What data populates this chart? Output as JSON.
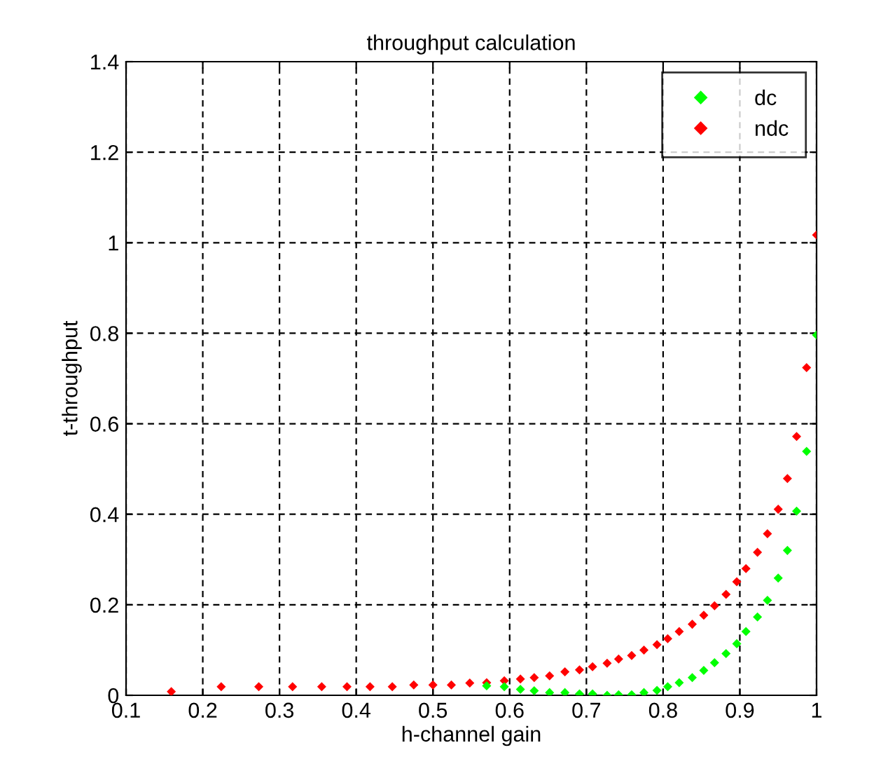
{
  "chart_data": {
    "type": "scatter",
    "title": "throughput calculation",
    "xlabel": "h-channel gain",
    "ylabel": "t-throughput",
    "series": [
      {
        "name": "dc",
        "color": "#00ff00",
        "x": [
          0.57,
          0.593,
          0.614,
          0.632,
          0.652,
          0.672,
          0.691,
          0.708,
          0.727,
          0.742,
          0.759,
          0.775,
          0.792,
          0.806,
          0.821,
          0.838,
          0.853,
          0.867,
          0.882,
          0.896,
          0.908,
          0.923,
          0.936,
          0.95,
          0.962,
          0.974,
          0.987,
          1.0
        ],
        "values": [
          0.021,
          0.019,
          0.013,
          0.01,
          0.006,
          0.006,
          0.003,
          0.003,
          0,
          0.001,
          0.001,
          0.006,
          0.011,
          0.019,
          0.028,
          0.039,
          0.055,
          0.072,
          0.092,
          0.114,
          0.141,
          0.173,
          0.21,
          0.259,
          0.32,
          0.407,
          0.539,
          0.796
        ]
      },
      {
        "name": "ndc",
        "color": "#ff0000",
        "x": [
          0.159,
          0.224,
          0.273,
          0.317,
          0.355,
          0.388,
          0.418,
          0.447,
          0.475,
          0.5,
          0.524,
          0.548,
          0.57,
          0.593,
          0.614,
          0.632,
          0.652,
          0.672,
          0.691,
          0.708,
          0.727,
          0.742,
          0.759,
          0.775,
          0.792,
          0.806,
          0.821,
          0.838,
          0.853,
          0.867,
          0.882,
          0.896,
          0.908,
          0.923,
          0.936,
          0.95,
          0.962,
          0.974,
          0.987,
          1.0
        ],
        "values": [
          0.008,
          0.019,
          0.019,
          0.019,
          0.019,
          0.019,
          0.019,
          0.019,
          0.023,
          0.023,
          0.023,
          0.027,
          0.028,
          0.032,
          0.036,
          0.039,
          0.043,
          0.052,
          0.056,
          0.063,
          0.071,
          0.08,
          0.088,
          0.1,
          0.112,
          0.125,
          0.141,
          0.157,
          0.177,
          0.198,
          0.223,
          0.251,
          0.28,
          0.316,
          0.357,
          0.411,
          0.479,
          0.572,
          0.724,
          1.017
        ]
      }
    ],
    "xlim": [
      0.1,
      1
    ],
    "ylim": [
      0,
      1.4
    ],
    "xticks": [
      0.1,
      0.2,
      0.3,
      0.4,
      0.5,
      0.6,
      0.7,
      0.8,
      0.9,
      1
    ],
    "yticks": [
      0,
      0.2,
      0.4,
      0.6,
      0.8,
      1,
      1.2,
      1.4
    ],
    "grid": true,
    "legend": "top right",
    "marker": "diamond"
  }
}
